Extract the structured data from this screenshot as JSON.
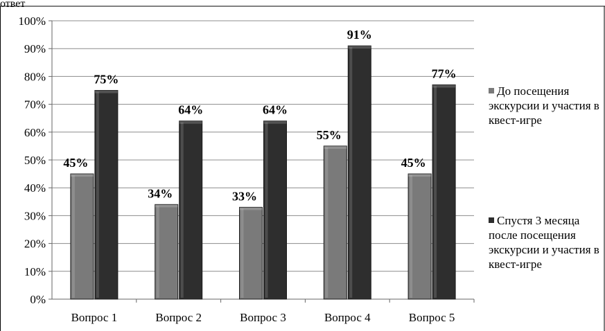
{
  "top_caption": "ответ",
  "chart_data": {
    "type": "bar",
    "categories": [
      "Вопрос 1",
      "Вопрос 2",
      "Вопрос 3",
      "Вопрос 4",
      "Вопрос 5"
    ],
    "series": [
      {
        "name": "До посещения экскурсии и участия в квест-игре",
        "values": [
          45,
          34,
          33,
          55,
          45
        ],
        "labels": [
          "45%",
          "34%",
          "33%",
          "55%",
          "45%"
        ],
        "color": "#7a7a7a"
      },
      {
        "name": "Спустя 3 месяца после посещения экскурсии и участия в квест-игре",
        "values": [
          75,
          64,
          64,
          91,
          77
        ],
        "labels": [
          "75%",
          "64%",
          "64%",
          "91%",
          "77%"
        ],
        "color": "#2e2e2e"
      }
    ],
    "ylim": [
      0,
      100
    ],
    "yticks": [
      "0%",
      "10%",
      "20%",
      "30%",
      "40%",
      "50%",
      "60%",
      "70%",
      "80%",
      "90%",
      "100%"
    ],
    "grid": true,
    "legend_position": "right",
    "title": "",
    "xlabel": "",
    "ylabel": ""
  }
}
